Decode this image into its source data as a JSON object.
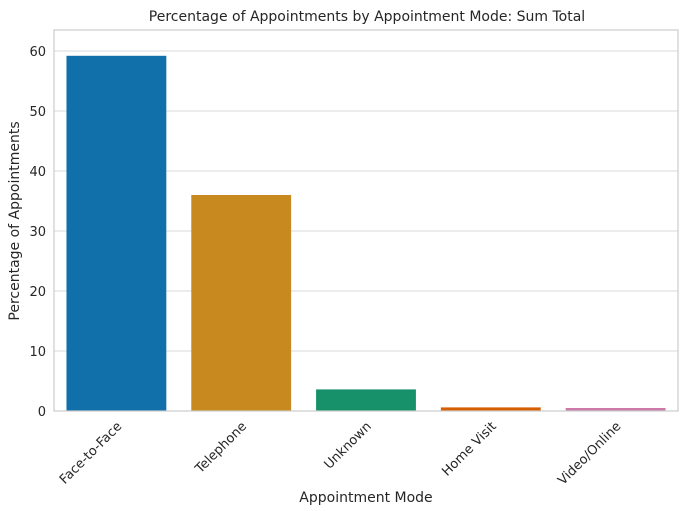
{
  "chart_data": {
    "type": "bar",
    "title": "Percentage of Appointments by Appointment Mode: Sum Total",
    "xlabel": "Appointment Mode",
    "ylabel": "Percentage of Appointments",
    "categories": [
      "Face-to-Face",
      "Telephone",
      "Unknown",
      "Home Visit",
      "Video/Online"
    ],
    "values": [
      59.2,
      36.0,
      3.6,
      0.6,
      0.5
    ],
    "colors": [
      "#1170aa",
      "#c88a1f",
      "#16916a",
      "#d55e00",
      "#cc79a7"
    ],
    "ylim": [
      0,
      63.5
    ],
    "yticks": [
      0,
      10,
      20,
      30,
      40,
      50,
      60
    ],
    "grid": true,
    "legend": "none"
  }
}
